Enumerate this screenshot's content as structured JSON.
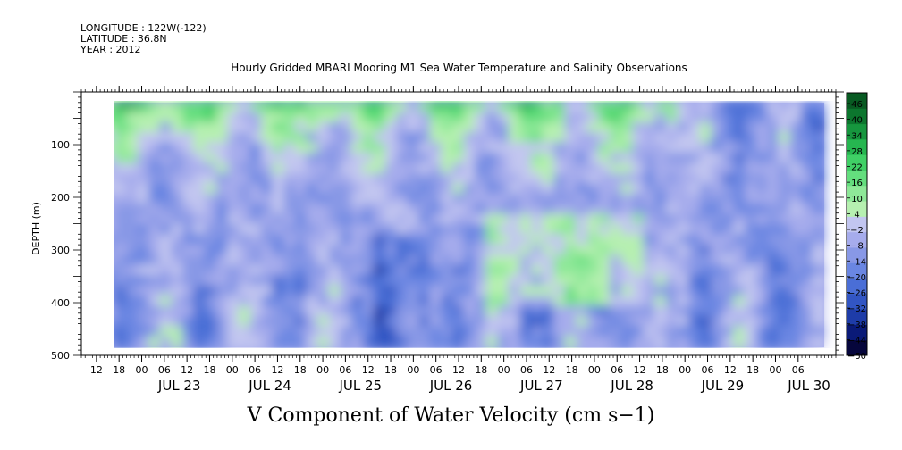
{
  "header": {
    "longitude": "LONGITUDE : 122W(-122)",
    "latitude": "LATITUDE : 36.8N",
    "year": "YEAR : 2012"
  },
  "chart_data": {
    "type": "heatmap",
    "title": "Hourly Gridded MBARI Mooring M1 Sea Water Temperature and Salinity Observations",
    "xlabel": "",
    "ylabel": "DEPTH (m)",
    "caption": "V Component of Water Velocity (cm s−1)",
    "y_ticks": [
      100,
      200,
      300,
      400,
      500
    ],
    "y_range": [
      500,
      0
    ],
    "data_depth_range": [
      20,
      485
    ],
    "x_time_range": [
      "2012-07-22 08:00",
      "2012-07-30 12:00"
    ],
    "data_time_range": [
      "2012-07-22 14:00",
      "2012-07-30 09:00"
    ],
    "x_hour_labels": [
      "12",
      "18",
      "00",
      "06",
      "12",
      "18",
      "00",
      "06",
      "12",
      "18",
      "00",
      "06",
      "12",
      "18",
      "00",
      "06",
      "12",
      "18",
      "00",
      "06",
      "12",
      "18",
      "00",
      "06",
      "12",
      "18",
      "00",
      "06",
      "12",
      "18",
      "00",
      "06"
    ],
    "x_day_labels": [
      "JUL 23",
      "JUL 24",
      "JUL 25",
      "JUL 26",
      "JUL 27",
      "JUL 28",
      "JUL 29",
      "JUL 30"
    ],
    "colorbar_labels": [
      "46",
      "40",
      "34",
      "28",
      "22",
      "16",
      "10",
      "4",
      "−2",
      "−8",
      "−14",
      "−20",
      "−26",
      "−32",
      "−38",
      "−44",
      "−50"
    ],
    "colorbar_range": [
      -50,
      50
    ],
    "colorbar_colors": [
      "#06063c",
      "#0a1a78",
      "#1e3ca8",
      "#3256c4",
      "#4a6ed6",
      "#6a86e2",
      "#8898e6",
      "#a6acec",
      "#c2c6f0",
      "#b6f0b0",
      "#8ee898",
      "#64de7e",
      "#40d066",
      "#26b650",
      "#16963e",
      "#0c762e",
      "#085a22"
    ],
    "field_summary": "Green (northward, +4 to +46 cm/s) dominates 20-120 m on Jul 23-Jul 28; blue (southward, -2 to -32 cm/s) dominates deep layers and most depths after Jul 28 18:00; green columns 250-400 m near Jul 27 and Jul 28."
  }
}
